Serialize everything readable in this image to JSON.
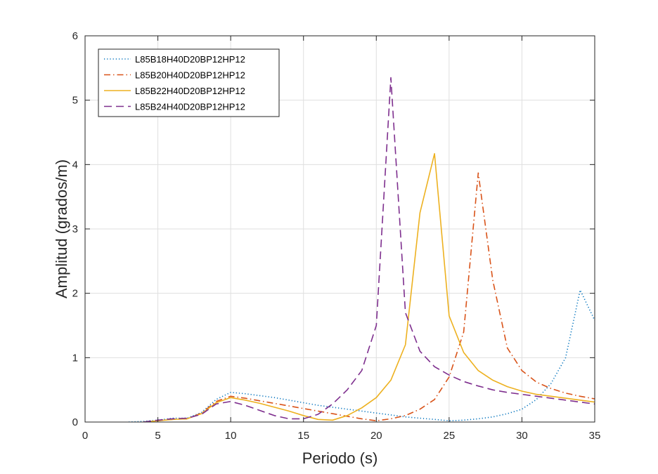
{
  "chart_data": {
    "type": "line",
    "xlabel": "Periodo (s)",
    "ylabel": "Amplitud (grados/m)",
    "xlim": [
      0,
      35
    ],
    "ylim": [
      0,
      6
    ],
    "xticks": [
      0,
      5,
      10,
      15,
      20,
      25,
      30,
      35
    ],
    "yticks": [
      0,
      1,
      2,
      3,
      4,
      5,
      6
    ],
    "grid": true,
    "legend_position": "top-left",
    "series": [
      {
        "name": "L85B18H40D20BP12HP12",
        "color": "#0072BD",
        "style": "dotted",
        "x": [
          3,
          4,
          5,
          6,
          7,
          8,
          9,
          10,
          11,
          12,
          13,
          14,
          15,
          16,
          17,
          18,
          19,
          20,
          21,
          22,
          23,
          24,
          25,
          26,
          27,
          28,
          29,
          30,
          31,
          32,
          33,
          34,
          35
        ],
        "y": [
          0.0,
          0.01,
          0.03,
          0.06,
          0.06,
          0.15,
          0.35,
          0.46,
          0.44,
          0.41,
          0.38,
          0.34,
          0.3,
          0.26,
          0.23,
          0.2,
          0.17,
          0.14,
          0.11,
          0.08,
          0.06,
          0.04,
          0.02,
          0.03,
          0.05,
          0.08,
          0.13,
          0.2,
          0.35,
          0.6,
          1.0,
          2.05,
          1.58
        ]
      },
      {
        "name": "L85B20H40D20BP12HP12",
        "color": "#D95319",
        "style": "dashdot",
        "x": [
          4,
          5,
          6,
          7,
          8,
          9,
          10,
          11,
          12,
          13,
          14,
          15,
          16,
          17,
          18,
          19,
          20,
          21,
          22,
          23,
          24,
          25,
          26,
          27,
          28,
          29,
          30,
          31,
          32,
          33,
          34,
          35
        ],
        "y": [
          0.0,
          0.02,
          0.04,
          0.05,
          0.14,
          0.32,
          0.4,
          0.37,
          0.33,
          0.29,
          0.25,
          0.21,
          0.17,
          0.13,
          0.09,
          0.05,
          0.02,
          0.05,
          0.1,
          0.2,
          0.35,
          0.7,
          1.4,
          3.87,
          2.2,
          1.15,
          0.8,
          0.62,
          0.52,
          0.45,
          0.4,
          0.36
        ]
      },
      {
        "name": "L85B22H40D20BP12HP12",
        "color": "#EDB120",
        "style": "solid",
        "x": [
          4,
          5,
          6,
          7,
          8,
          9,
          10,
          11,
          12,
          13,
          14,
          15,
          16,
          17,
          18,
          19,
          20,
          21,
          22,
          23,
          24,
          25,
          26,
          27,
          28,
          29,
          30,
          31,
          32,
          33,
          34,
          35
        ],
        "y": [
          0.0,
          0.02,
          0.04,
          0.05,
          0.13,
          0.3,
          0.38,
          0.34,
          0.29,
          0.23,
          0.17,
          0.1,
          0.04,
          0.03,
          0.1,
          0.22,
          0.38,
          0.65,
          1.2,
          3.25,
          4.17,
          1.65,
          1.08,
          0.8,
          0.65,
          0.55,
          0.48,
          0.43,
          0.4,
          0.37,
          0.34,
          0.31
        ]
      },
      {
        "name": "L85B24H40D20BP12HP12",
        "color": "#7E2F8E",
        "style": "dashed",
        "x": [
          4,
          5,
          6,
          7,
          8,
          9,
          10,
          11,
          12,
          13,
          14,
          15,
          16,
          17,
          18,
          19,
          20,
          21,
          22,
          23,
          24,
          25,
          26,
          27,
          28,
          29,
          30,
          31,
          32,
          33,
          34,
          35
        ],
        "y": [
          0.0,
          0.03,
          0.05,
          0.06,
          0.12,
          0.28,
          0.32,
          0.26,
          0.18,
          0.1,
          0.05,
          0.05,
          0.12,
          0.28,
          0.5,
          0.8,
          1.5,
          5.35,
          1.7,
          1.1,
          0.86,
          0.73,
          0.63,
          0.56,
          0.5,
          0.46,
          0.43,
          0.4,
          0.37,
          0.34,
          0.31,
          0.28
        ]
      }
    ]
  }
}
